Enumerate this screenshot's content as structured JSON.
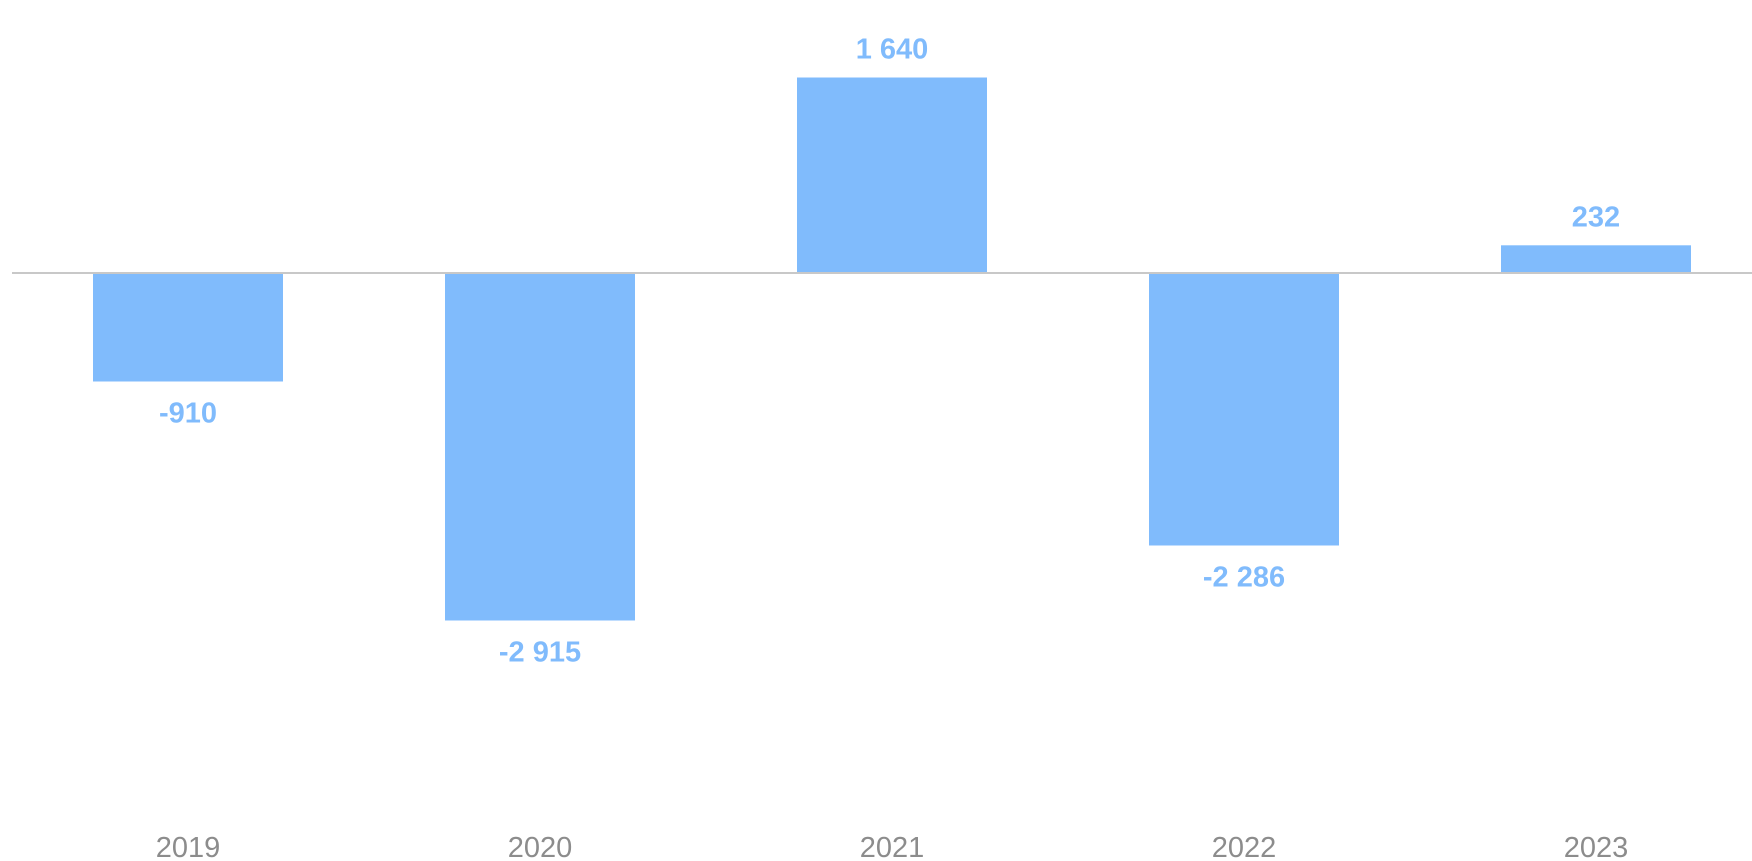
{
  "colors": {
    "bar": "#80bbfc",
    "label": "#80bbfc",
    "axis": "#c8c8c8",
    "tick": "#8c8c8c"
  },
  "chart_data": {
    "type": "bar",
    "categories": [
      "2019",
      "2020",
      "2021",
      "2022",
      "2023"
    ],
    "values": [
      -910,
      -2915,
      1640,
      -2286,
      232
    ],
    "value_labels": [
      "-910",
      "-2 915",
      "1 640",
      "-2 286",
      "232"
    ],
    "title": "",
    "xlabel": "",
    "ylabel": "",
    "ylim": [
      -4600,
      2000
    ],
    "grid": false,
    "legend": "none"
  }
}
